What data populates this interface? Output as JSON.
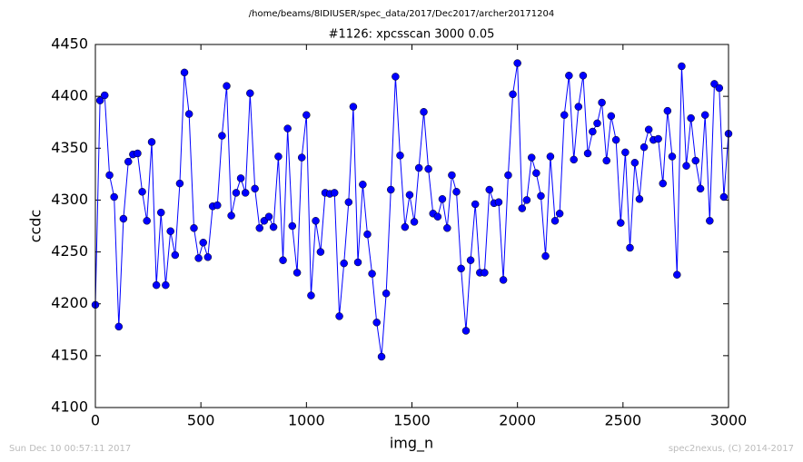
{
  "chart_data": {
    "type": "line",
    "suptitle": "/home/beams/8IDIUSER/spec_data/2017/Dec2017/archer20171204",
    "title": "#1126: xpcsscan 3000 0.05",
    "xlabel": "img_n",
    "ylabel": "ccdc",
    "footer_left": "Sun Dec 10 00:57:11 2017",
    "footer_right": "spec2nexus, (C) 2014-2017",
    "xlim": [
      0,
      3000
    ],
    "xticks": [
      0,
      500,
      1000,
      1500,
      2000,
      2500,
      3000
    ],
    "ylim": [
      4100,
      4450
    ],
    "yticks": [
      4100,
      4150,
      4200,
      4250,
      4300,
      4350,
      4400,
      4450
    ],
    "x": [
      0,
      22,
      44,
      67,
      89,
      111,
      133,
      156,
      178,
      200,
      222,
      244,
      267,
      289,
      311,
      333,
      356,
      378,
      400,
      422,
      444,
      467,
      489,
      511,
      533,
      556,
      578,
      600,
      622,
      644,
      667,
      689,
      711,
      733,
      756,
      778,
      800,
      822,
      844,
      867,
      889,
      911,
      933,
      956,
      978,
      1000,
      1022,
      1044,
      1067,
      1089,
      1111,
      1133,
      1156,
      1178,
      1200,
      1222,
      1244,
      1267,
      1289,
      1311,
      1333,
      1356,
      1378,
      1400,
      1422,
      1444,
      1467,
      1489,
      1511,
      1533,
      1556,
      1578,
      1600,
      1622,
      1644,
      1667,
      1689,
      1711,
      1733,
      1756,
      1778,
      1800,
      1822,
      1844,
      1867,
      1889,
      1911,
      1933,
      1956,
      1978,
      2000,
      2022,
      2044,
      2067,
      2089,
      2111,
      2133,
      2156,
      2178,
      2200,
      2222,
      2244,
      2267,
      2289,
      2311,
      2333,
      2356,
      2378,
      2400,
      2422,
      2444,
      2467,
      2489,
      2511,
      2533,
      2556,
      2578,
      2600,
      2622,
      2644,
      2667,
      2689,
      2711,
      2733,
      2756,
      2778,
      2800,
      2822,
      2844,
      2867,
      2889,
      2911,
      2933,
      2956,
      2978,
      3000
    ],
    "series": [
      {
        "name": "ccdc",
        "color": "#0000ff",
        "values": [
          4199,
          4396,
          4401,
          4324,
          4303,
          4178,
          4282,
          4337,
          4344,
          4345,
          4308,
          4280,
          4356,
          4218,
          4288,
          4218,
          4270,
          4247,
          4316,
          4423,
          4383,
          4273,
          4244,
          4259,
          4245,
          4294,
          4295,
          4362,
          4410,
          4285,
          4307,
          4321,
          4307,
          4403,
          4311,
          4273,
          4280,
          4284,
          4274,
          4342,
          4242,
          4369,
          4275,
          4230,
          4341,
          4382,
          4208,
          4280,
          4250,
          4307,
          4306,
          4307,
          4188,
          4239,
          4298,
          4390,
          4240,
          4315,
          4267,
          4229,
          4182,
          4149,
          4210,
          4310,
          4419,
          4343,
          4274,
          4305,
          4279,
          4331,
          4385,
          4330,
          4287,
          4284,
          4301,
          4273,
          4324,
          4308,
          4234,
          4174,
          4242,
          4296,
          4230,
          4230,
          4310,
          4297,
          4298,
          4223,
          4324,
          4402,
          4432,
          4292,
          4300,
          4341,
          4326,
          4304,
          4246,
          4342,
          4280,
          4287,
          4382,
          4420,
          4339,
          4390,
          4420,
          4345,
          4366,
          4374,
          4394,
          4338,
          4381,
          4358,
          4278,
          4346,
          4254,
          4336,
          4301,
          4351,
          4368,
          4358,
          4359,
          4316,
          4386,
          4342,
          4228,
          4429,
          4333,
          4379,
          4338,
          4311,
          4382,
          4280,
          4412,
          4408,
          4303,
          4364
        ]
      }
    ]
  }
}
